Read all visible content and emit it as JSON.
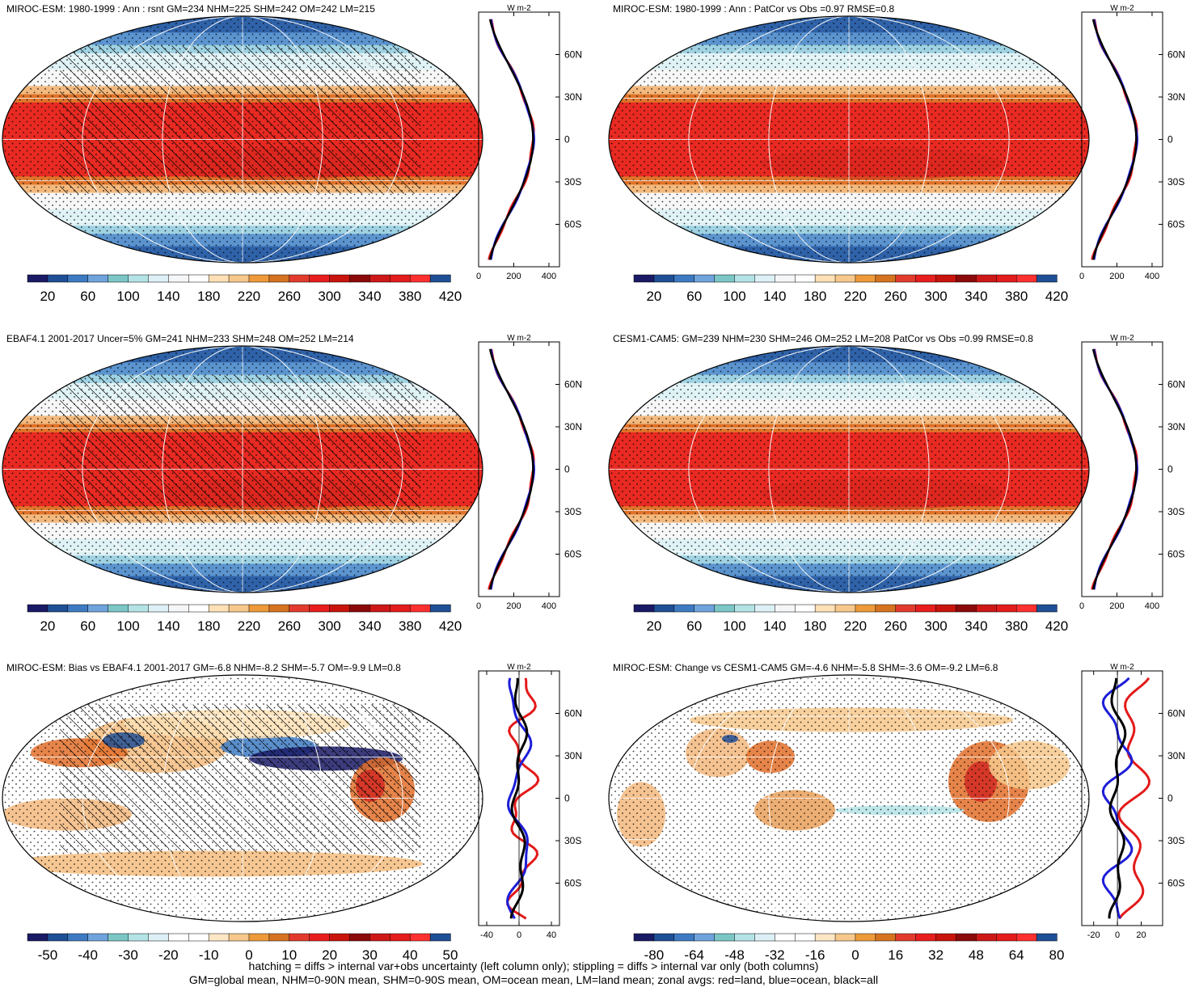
{
  "panels": [
    {
      "title": "MIROC-ESM: 1980-1999 : Ann : rsnt GM=234 NHM=225 SHM=242 OM=242 LM=215",
      "type": "abs",
      "hatch": true,
      "colorbar": {
        "labels": [
          "20",
          "60",
          "100",
          "140",
          "180",
          "220",
          "260",
          "300",
          "340",
          "380",
          "420"
        ]
      },
      "profile": {
        "xticks": [
          "0",
          "200",
          "400"
        ],
        "xmin": 0,
        "xmax": 460
      }
    },
    {
      "title": "MIROC-ESM: 1980-1999 : Ann : PatCor vs Obs =0.97 RMSE=0.8",
      "type": "abs",
      "hatch": false,
      "colorbar": {
        "labels": [
          "20",
          "60",
          "100",
          "140",
          "180",
          "220",
          "260",
          "300",
          "340",
          "380",
          "420"
        ]
      },
      "profile": {
        "xticks": [
          "0",
          "200",
          "400"
        ],
        "xmin": 0,
        "xmax": 460
      }
    },
    {
      "title": "EBAF4.1 2001-2017 Uncer=5% GM=241 NHM=233 SHM=248 OM=252 LM=214",
      "type": "abs",
      "hatch": true,
      "colorbar": {
        "labels": [
          "20",
          "60",
          "100",
          "140",
          "180",
          "220",
          "260",
          "300",
          "340",
          "380",
          "420"
        ]
      },
      "profile": {
        "xticks": [
          "0",
          "200",
          "400"
        ],
        "xmin": 0,
        "xmax": 460
      }
    },
    {
      "title": "CESM1-CAM5: GM=239 NHM=230 SHM=246 OM=252 LM=208 PatCor vs Obs =0.99 RMSE=0.8",
      "type": "abs",
      "hatch": false,
      "colorbar": {
        "labels": [
          "20",
          "60",
          "100",
          "140",
          "180",
          "220",
          "260",
          "300",
          "340",
          "380",
          "420"
        ]
      },
      "profile": {
        "xticks": [
          "0",
          "200",
          "400"
        ],
        "xmin": 0,
        "xmax": 460
      }
    },
    {
      "title": "MIROC-ESM: Bias vs EBAF4.1 2001-2017 GM=-6.8 NHM=-8.2 SHM=-5.7 OM=-9.9 LM=0.8",
      "type": "bias",
      "hatch": true,
      "colorbar": {
        "labels": [
          "-50",
          "-40",
          "-30",
          "-20",
          "-10",
          "0",
          "10",
          "20",
          "30",
          "40",
          "50"
        ]
      },
      "profile": {
        "xticks": [
          "-40",
          "0",
          "40"
        ],
        "xmin": -50,
        "xmax": 50
      }
    },
    {
      "title": "MIROC-ESM: Change vs CESM1-CAM5 GM=-4.6 NHM=-5.8 SHM=-3.6 OM=-9.2 LM=6.8",
      "type": "change",
      "hatch": false,
      "colorbar": {
        "labels": [
          "-80",
          "-64",
          "-48",
          "-32",
          "-16",
          "0",
          "16",
          "32",
          "48",
          "64",
          "80"
        ]
      },
      "profile": {
        "xticks": [
          "-20",
          "0",
          "20"
        ],
        "xmin": -30,
        "xmax": 38
      }
    }
  ],
  "lat_labels": [
    "60N",
    "30N",
    "0",
    "30S",
    "60S"
  ],
  "unit_label": "W m-2",
  "footer": {
    "line1": "hatching = diffs > internal var+obs uncertainty (left column only); stippling = diffs > internal var only (both columns)",
    "line2": "GM=global mean, NHM=0-90N mean, SHM=0-90S mean, OM=ocean mean, LM=land mean; zonal avgs: red=land, blue=ocean, black=all"
  },
  "colors": {
    "abs_palette": [
      "#1a1a66",
      "#1f4f96",
      "#3d7ac2",
      "#6fa3dc",
      "#7cc6c6",
      "#b4e3e6",
      "#dcf0f5",
      "#f4f6f8",
      "#ffffff",
      "#fde0b5",
      "#f6c88c",
      "#ee9a3a",
      "#d67320",
      "#e33a2e",
      "#e81e1e",
      "#c8140c",
      "#8c0a0a",
      "#ce1818",
      "#e41c1c",
      "#ff3030",
      "#1f4f96"
    ],
    "div_palette": [
      "#1a1a66",
      "#1f4f96",
      "#3d7ac2",
      "#6fa3dc",
      "#7cc6c6",
      "#b4e3e6",
      "#dcf0f5",
      "#ffffff",
      "#ffffff",
      "#fde6c6",
      "#f6c88c",
      "#ee9a3a",
      "#d67320",
      "#e33a2e",
      "#e81e1e",
      "#c8140c",
      "#8c0a0a",
      "#ce1818",
      "#e41c1c",
      "#ff3030",
      "#1f4f96"
    ],
    "land_line": "#e31a1a",
    "ocean_line": "#1d1dd8",
    "all_line": "#000000"
  }
}
